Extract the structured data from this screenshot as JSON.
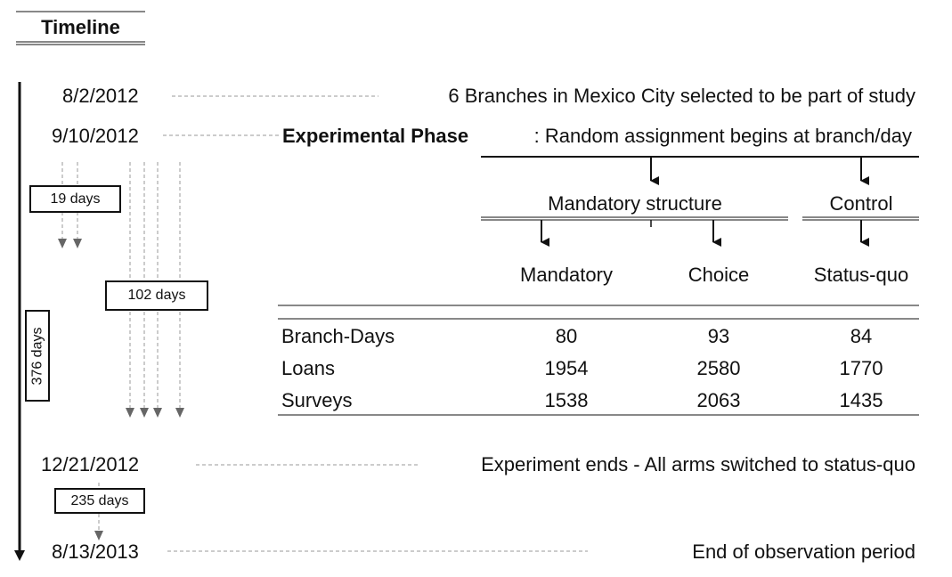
{
  "title": "Timeline",
  "events": [
    {
      "date": "8/2/2012",
      "description": "6 Branches in Mexico City selected to be part of study"
    },
    {
      "date": "9/10/2012",
      "phase_label": "Experimental Phase",
      "description": ": Random assignment begins at branch/day"
    },
    {
      "date": "12/21/2012",
      "description": "Experiment ends - All arms switched to status-quo"
    },
    {
      "date": "8/13/2013",
      "description": "End of observation period"
    }
  ],
  "durations": {
    "d19": "19 days",
    "d102": "102 days",
    "d376": "376 days",
    "d235": "235 days"
  },
  "groups": {
    "mandatory_structure": "Mandatory structure",
    "control": "Control"
  },
  "arms": [
    "Mandatory",
    "Choice",
    "Status-quo"
  ],
  "table": {
    "rows": [
      {
        "label": "Branch-Days",
        "values": [
          "80",
          "93",
          "84"
        ]
      },
      {
        "label": "Loans",
        "values": [
          "1954",
          "2580",
          "1770"
        ]
      },
      {
        "label": "Surveys",
        "values": [
          "1538",
          "2063",
          "1435"
        ]
      }
    ]
  }
}
